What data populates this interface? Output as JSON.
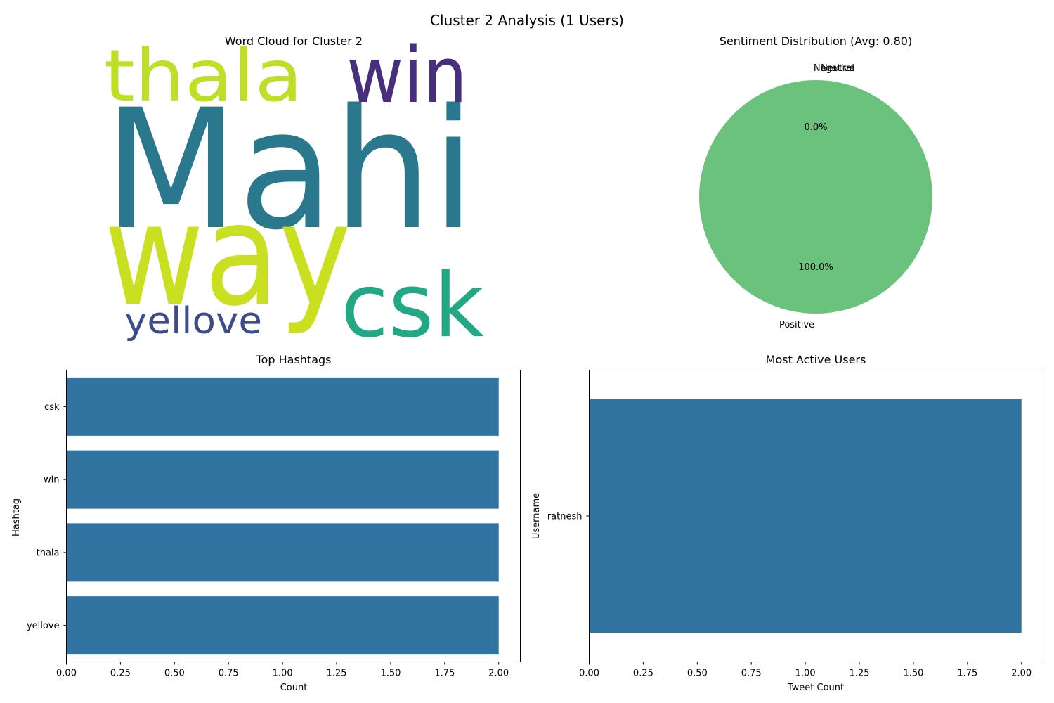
{
  "figure": {
    "title": "Cluster 2 Analysis (1 Users)"
  },
  "chart_data": [
    {
      "type": "wordcloud",
      "title": "Word Cloud for Cluster 2",
      "words": [
        {
          "text": "Mahi",
          "color": "#2a788e"
        },
        {
          "text": "way",
          "color": "#c8e020"
        },
        {
          "text": "thala",
          "color": "#bddf26"
        },
        {
          "text": "win",
          "color": "#472f7d"
        },
        {
          "text": "csk",
          "color": "#22a884"
        },
        {
          "text": "yellove",
          "color": "#3e4c8a"
        }
      ]
    },
    {
      "type": "pie",
      "title": "Sentiment Distribution (Avg: 0.80)",
      "slices": [
        {
          "label": "Positive",
          "value": 100.0,
          "pct_label": "100.0%",
          "color": "#6ac27d"
        },
        {
          "label": "Neutral",
          "value": 0.0,
          "pct_label": "0.0%",
          "color": "#f5a623"
        },
        {
          "label": "Negative",
          "value": 0.0,
          "pct_label": "0.0%",
          "color": "#e74c3c"
        }
      ]
    },
    {
      "type": "bar",
      "orientation": "horizontal",
      "title": "Top Hashtags",
      "xlabel": "Count",
      "ylabel": "Hashtag",
      "categories": [
        "csk",
        "win",
        "thala",
        "yellove"
      ],
      "values": [
        2,
        2,
        2,
        2
      ],
      "xlim": [
        0,
        2.1
      ],
      "xticks": [
        0.0,
        0.25,
        0.5,
        0.75,
        1.0,
        1.25,
        1.5,
        1.75,
        2.0
      ],
      "xtick_labels": [
        "0.00",
        "0.25",
        "0.50",
        "0.75",
        "1.00",
        "1.25",
        "1.50",
        "1.75",
        "2.00"
      ],
      "bar_color": "#3274a1",
      "grid": false
    },
    {
      "type": "bar",
      "orientation": "horizontal",
      "title": "Most Active Users",
      "xlabel": "Tweet Count",
      "ylabel": "Username",
      "categories": [
        "ratnesh"
      ],
      "values": [
        2
      ],
      "xlim": [
        0,
        2.1
      ],
      "xticks": [
        0.0,
        0.25,
        0.5,
        0.75,
        1.0,
        1.25,
        1.5,
        1.75,
        2.0
      ],
      "xtick_labels": [
        "0.00",
        "0.25",
        "0.50",
        "0.75",
        "1.00",
        "1.25",
        "1.50",
        "1.75",
        "2.00"
      ],
      "bar_color": "#3274a1",
      "grid": false
    }
  ]
}
